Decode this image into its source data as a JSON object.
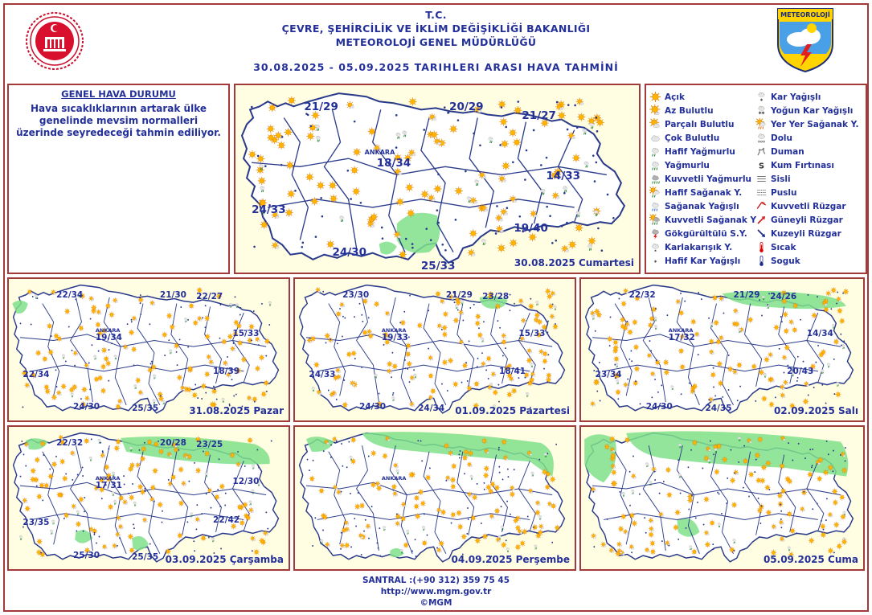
{
  "header": {
    "line1": "T.C.",
    "line2": "ÇEVRE, ŞEHİRCİLİK VE İKLİM DEĞİŞİKLİĞİ BAKANLIĞI",
    "line3": "METEOROLOJİ GENEL MÜDÜRLÜĞÜ",
    "line4": "30.08.2025  -  05.09.2025   TARIHLERI  ARASI  HAVA  TAHMİNİ",
    "logo_text": "METEOROLOJİ"
  },
  "genel": {
    "title": "GENEL HAVA DURUMU",
    "text": "Hava sıcaklıklarının artarak ülke genelinde mevsim normalleri üzerinde seyredeceği tahmin ediliyor."
  },
  "legend": [
    {
      "label": "Açık",
      "icon": "sun-icon"
    },
    {
      "label": "Az Bulutlu",
      "icon": "few-clouds-icon"
    },
    {
      "label": "Parçalı Bulutlu",
      "icon": "partly-cloudy-icon"
    },
    {
      "label": "Çok Bulutlu",
      "icon": "cloudy-icon"
    },
    {
      "label": "Hafif Yağmurlu",
      "icon": "light-rain-icon"
    },
    {
      "label": "Yağmurlu",
      "icon": "rain-icon"
    },
    {
      "label": "Kuvvetli Yağmurlu",
      "icon": "heavy-rain-icon"
    },
    {
      "label": "Hafif Sağanak Y.",
      "icon": "light-shower-icon"
    },
    {
      "label": "Sağanak Yağışlı",
      "icon": "shower-icon"
    },
    {
      "label": "Kuvvetli Sağanak Y",
      "icon": "heavy-shower-icon"
    },
    {
      "label": "Gökgürültülü S.Y.",
      "icon": "thunderstorm-icon"
    },
    {
      "label": "Karlakarışık Y.",
      "icon": "sleet-icon"
    },
    {
      "label": "Hafif Kar Yağışlı",
      "icon": "light-snow-icon"
    },
    {
      "label": "Kar Yağışlı",
      "icon": "snow-icon"
    },
    {
      "label": "Yoğun Kar Yağışlı",
      "icon": "heavy-snow-icon"
    },
    {
      "label": "Yer Yer Sağanak Y.",
      "icon": "local-shower-icon"
    },
    {
      "label": "Dolu",
      "icon": "hail-icon"
    },
    {
      "label": "Duman",
      "icon": "smoke-icon"
    },
    {
      "label": "Kum Fırtınası",
      "icon": "sandstorm-icon"
    },
    {
      "label": "Sisli",
      "icon": "fog-icon"
    },
    {
      "label": "Puslu",
      "icon": "haze-icon"
    },
    {
      "label": "Kuvvetli Rüzgar",
      "icon": "strong-wind-icon"
    },
    {
      "label": "Güneyli Rüzgar",
      "icon": "south-wind-icon"
    },
    {
      "label": "Kuzeyli Rüzgar",
      "icon": "north-wind-icon"
    },
    {
      "label": "Sıcak",
      "icon": "hot-icon"
    },
    {
      "label": "Soguk",
      "icon": "cold-icon"
    }
  ],
  "maps": [
    {
      "date": "30.08.2025 Cumartesi",
      "ankara": "ANKARA",
      "temps": [
        "21/29",
        "20/29",
        "21/27",
        "18/34",
        "14/33",
        "24/33",
        "19/40",
        "24/30",
        "25/33"
      ],
      "green": "mid-south"
    },
    {
      "date": "31.08.2025 Pazar",
      "ankara": "ANKARA",
      "temps": [
        "22/34",
        "21/30",
        "22/27",
        "19/34",
        "15/33",
        "22/34",
        "18/39",
        "24/30",
        "25/35"
      ],
      "green": "far-west"
    },
    {
      "date": "01.09.2025 Pazartesi",
      "ankara": "ANKARA",
      "temps": [
        "23/30",
        "21/29",
        "23/28",
        "19/33",
        "15/33",
        "24/33",
        "18/41",
        "24/30",
        "24/34"
      ],
      "green": "north-east"
    },
    {
      "date": "02.09.2025 Salı",
      "ankara": "ANKARA",
      "temps": [
        "22/32",
        "21/29",
        "24/26",
        "17/32",
        "14/34",
        "23/34",
        "20/43",
        "24/30",
        "24/35"
      ],
      "green": "black-sea"
    },
    {
      "date": "03.09.2025 Çarşamba",
      "ankara": "ANKARA",
      "temps": [
        "22/32",
        "20/28",
        "23/25",
        "17/31",
        "12/30",
        "23/35",
        "22/42",
        "25/30",
        "25/35"
      ],
      "green": "north-wide"
    },
    {
      "date": "04.09.2025 Perşembe",
      "ankara": "ANKARA",
      "temps": [],
      "green": "north-coast"
    },
    {
      "date": "05.09.2025 Cuma",
      "ankara": "",
      "temps": [],
      "green": "north-full"
    }
  ],
  "footer": {
    "phone": "SANTRAL :(+90 312) 359 75 45",
    "url": "http://www.mgm.gov.tr",
    "copyright": "©MGM"
  },
  "colors": {
    "title_blue": "#24309a",
    "frame_red": "#a33a3a",
    "map_fill": "#fffde2",
    "rain_green": "#7fe08a",
    "sun_orange": "#ffb000"
  }
}
